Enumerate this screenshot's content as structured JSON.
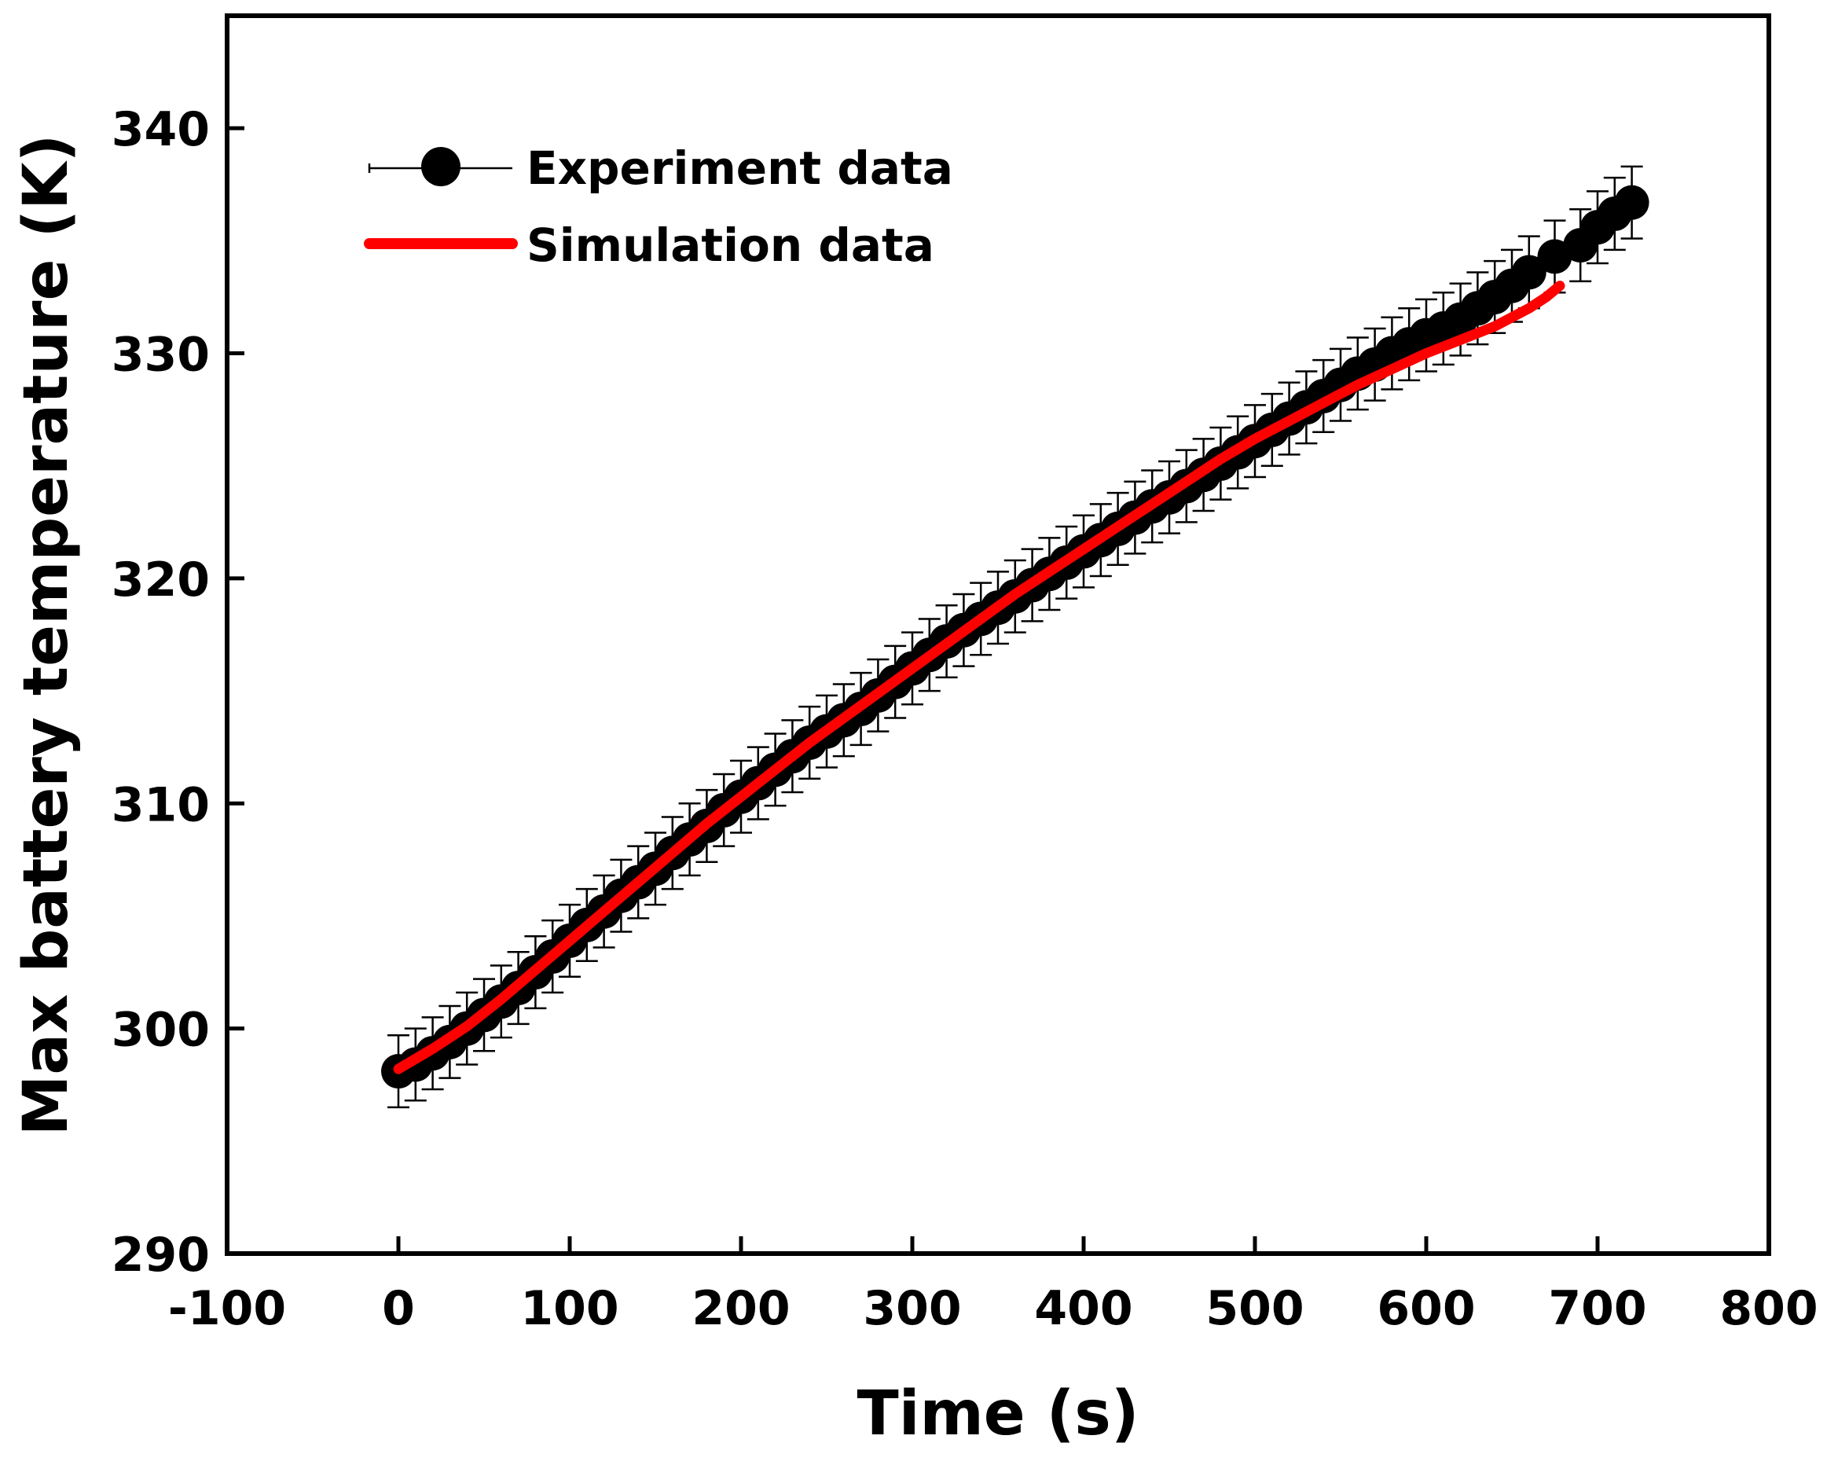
{
  "chart_data": {
    "type": "line",
    "title": "",
    "xlabel": "Time (s)",
    "ylabel": "Max battery temperature (K)",
    "xlim": [
      -100,
      800
    ],
    "ylim": [
      290,
      345
    ],
    "xticks": [
      -100,
      0,
      100,
      200,
      300,
      400,
      500,
      600,
      700,
      800
    ],
    "yticks": [
      290,
      300,
      310,
      320,
      330,
      340
    ],
    "grid": false,
    "legend_position": "top-left",
    "series": [
      {
        "name": "Experiment data",
        "style": "markers-with-error-bars",
        "color": "#000000",
        "error": 1.6,
        "x": [
          0,
          10,
          20,
          30,
          40,
          50,
          60,
          70,
          80,
          90,
          100,
          110,
          120,
          130,
          140,
          150,
          160,
          170,
          180,
          190,
          200,
          210,
          220,
          230,
          240,
          250,
          260,
          270,
          280,
          290,
          300,
          310,
          320,
          330,
          340,
          350,
          360,
          370,
          380,
          390,
          400,
          410,
          420,
          430,
          440,
          450,
          460,
          470,
          480,
          490,
          500,
          510,
          520,
          530,
          540,
          550,
          560,
          570,
          580,
          590,
          600,
          610,
          620,
          630,
          640,
          650,
          660,
          675,
          690,
          700,
          710,
          720
        ],
        "y": [
          298.1,
          298.4,
          298.9,
          299.4,
          300.0,
          300.6,
          301.2,
          301.8,
          302.5,
          303.2,
          303.9,
          304.6,
          305.2,
          305.9,
          306.5,
          307.1,
          307.8,
          308.4,
          309.0,
          309.7,
          310.3,
          310.9,
          311.5,
          312.1,
          312.7,
          313.2,
          313.7,
          314.2,
          314.8,
          315.4,
          316.0,
          316.6,
          317.2,
          317.7,
          318.2,
          318.7,
          319.2,
          319.7,
          320.2,
          320.7,
          321.2,
          321.7,
          322.2,
          322.7,
          323.2,
          323.6,
          324.1,
          324.6,
          325.1,
          325.6,
          326.1,
          326.6,
          327.1,
          327.6,
          328.1,
          328.6,
          329.1,
          329.5,
          330.0,
          330.4,
          330.8,
          331.1,
          331.5,
          332.0,
          332.5,
          333.0,
          333.6,
          334.3,
          334.8,
          335.6,
          336.2,
          336.7
        ]
      },
      {
        "name": "Simulation data",
        "style": "line",
        "color": "#ff0000",
        "x": [
          0,
          20,
          40,
          60,
          80,
          100,
          120,
          140,
          160,
          180,
          200,
          220,
          240,
          260,
          280,
          300,
          320,
          340,
          360,
          380,
          400,
          420,
          440,
          460,
          480,
          500,
          520,
          540,
          560,
          580,
          600,
          620,
          640,
          660,
          670,
          678
        ],
        "y": [
          298.2,
          299.1,
          300.1,
          301.3,
          302.6,
          303.9,
          305.2,
          306.5,
          307.8,
          309.1,
          310.3,
          311.5,
          312.7,
          313.8,
          314.9,
          316.0,
          317.1,
          318.2,
          319.3,
          320.3,
          321.3,
          322.3,
          323.3,
          324.3,
          325.3,
          326.2,
          327.0,
          327.8,
          328.6,
          329.3,
          330.0,
          330.6,
          331.2,
          332.0,
          332.5,
          333.0
        ]
      }
    ]
  }
}
